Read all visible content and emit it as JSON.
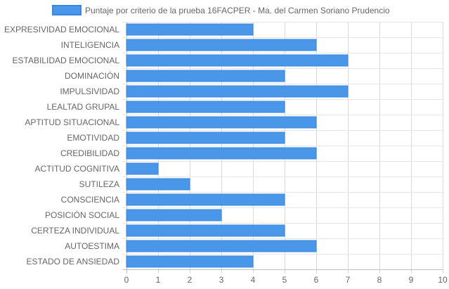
{
  "chart_data": {
    "type": "bar",
    "orientation": "horizontal",
    "categories": [
      "EXPRESIVIDAD EMOCIONAL",
      "INTELIGENCIA",
      "ESTABILIDAD EMOCIONAL",
      "DOMINACIÓN",
      "IMPULSIVIDAD",
      "LEALTAD GRUPAL",
      "APTITUD SITUACIONAL",
      "EMOTIVIDAD",
      "CREDIBILIDAD",
      "ACTITUD COGNITIVA",
      "SUTILEZA",
      "CONSCIENCIA",
      "POSICIÓN SOCIAL",
      "CERTEZA INDIVIDUAL",
      "AUTOESTIMA",
      "ESTADO DE ANSIEDAD"
    ],
    "series": [
      {
        "name": "Puntaje por criterio de la prueba 16FACPER - Ma. del Carmen Soriano Prudencio",
        "values": [
          4,
          6,
          7,
          5,
          7,
          5,
          6,
          5,
          6,
          1,
          2,
          5,
          3,
          5,
          6,
          4
        ],
        "color": "#4a97ea",
        "border_color": "#3a86e0"
      }
    ],
    "xlim": [
      0,
      10
    ],
    "x_ticks": [
      0,
      1,
      2,
      3,
      4,
      5,
      6,
      7,
      8,
      9,
      10
    ],
    "grid": true,
    "legend_position": "top-center"
  }
}
